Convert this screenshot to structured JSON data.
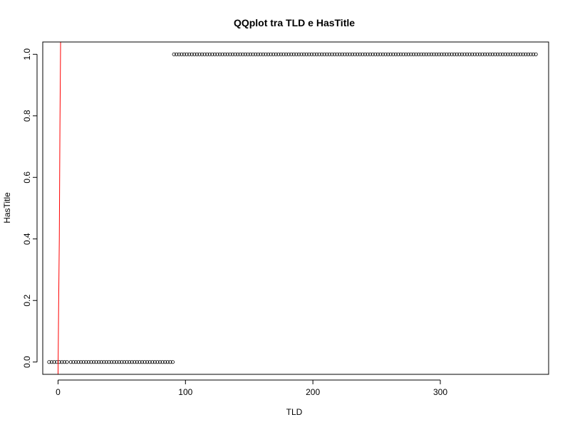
{
  "chart_data": {
    "type": "scatter",
    "title": "QQplot tra TLD e HasTitle",
    "xlabel": "TLD",
    "ylabel": "HasTitle",
    "xlim": [
      -12,
      385
    ],
    "ylim": [
      -0.04,
      1.04
    ],
    "x_ticks": [
      0,
      100,
      200,
      300
    ],
    "x_tick_labels": [
      "0",
      "100",
      "200",
      "300"
    ],
    "y_ticks": [
      0.0,
      0.2,
      0.4,
      0.6,
      0.8,
      1.0
    ],
    "y_tick_labels": [
      "0.0",
      "0.2",
      "0.4",
      "0.6",
      "0.8",
      "1.0"
    ],
    "grid": false,
    "legend": "none",
    "series": [
      {
        "marker": "open-circle",
        "color": "#000000",
        "groups": [
          {
            "y": 0,
            "x_from": -7,
            "x_to": 8,
            "step": 2
          },
          {
            "y": 0,
            "x_from": 10,
            "x_to": 90,
            "step": 2
          },
          {
            "y": 1,
            "x_from": 91,
            "x_to": 375,
            "step": 2
          }
        ]
      },
      {
        "type": "line",
        "color": "#ff0000",
        "x": [
          0,
          0.5,
          1,
          1.5,
          2
        ],
        "y": [
          -0.04,
          0.2,
          0.4,
          0.77,
          1.04
        ]
      }
    ]
  }
}
